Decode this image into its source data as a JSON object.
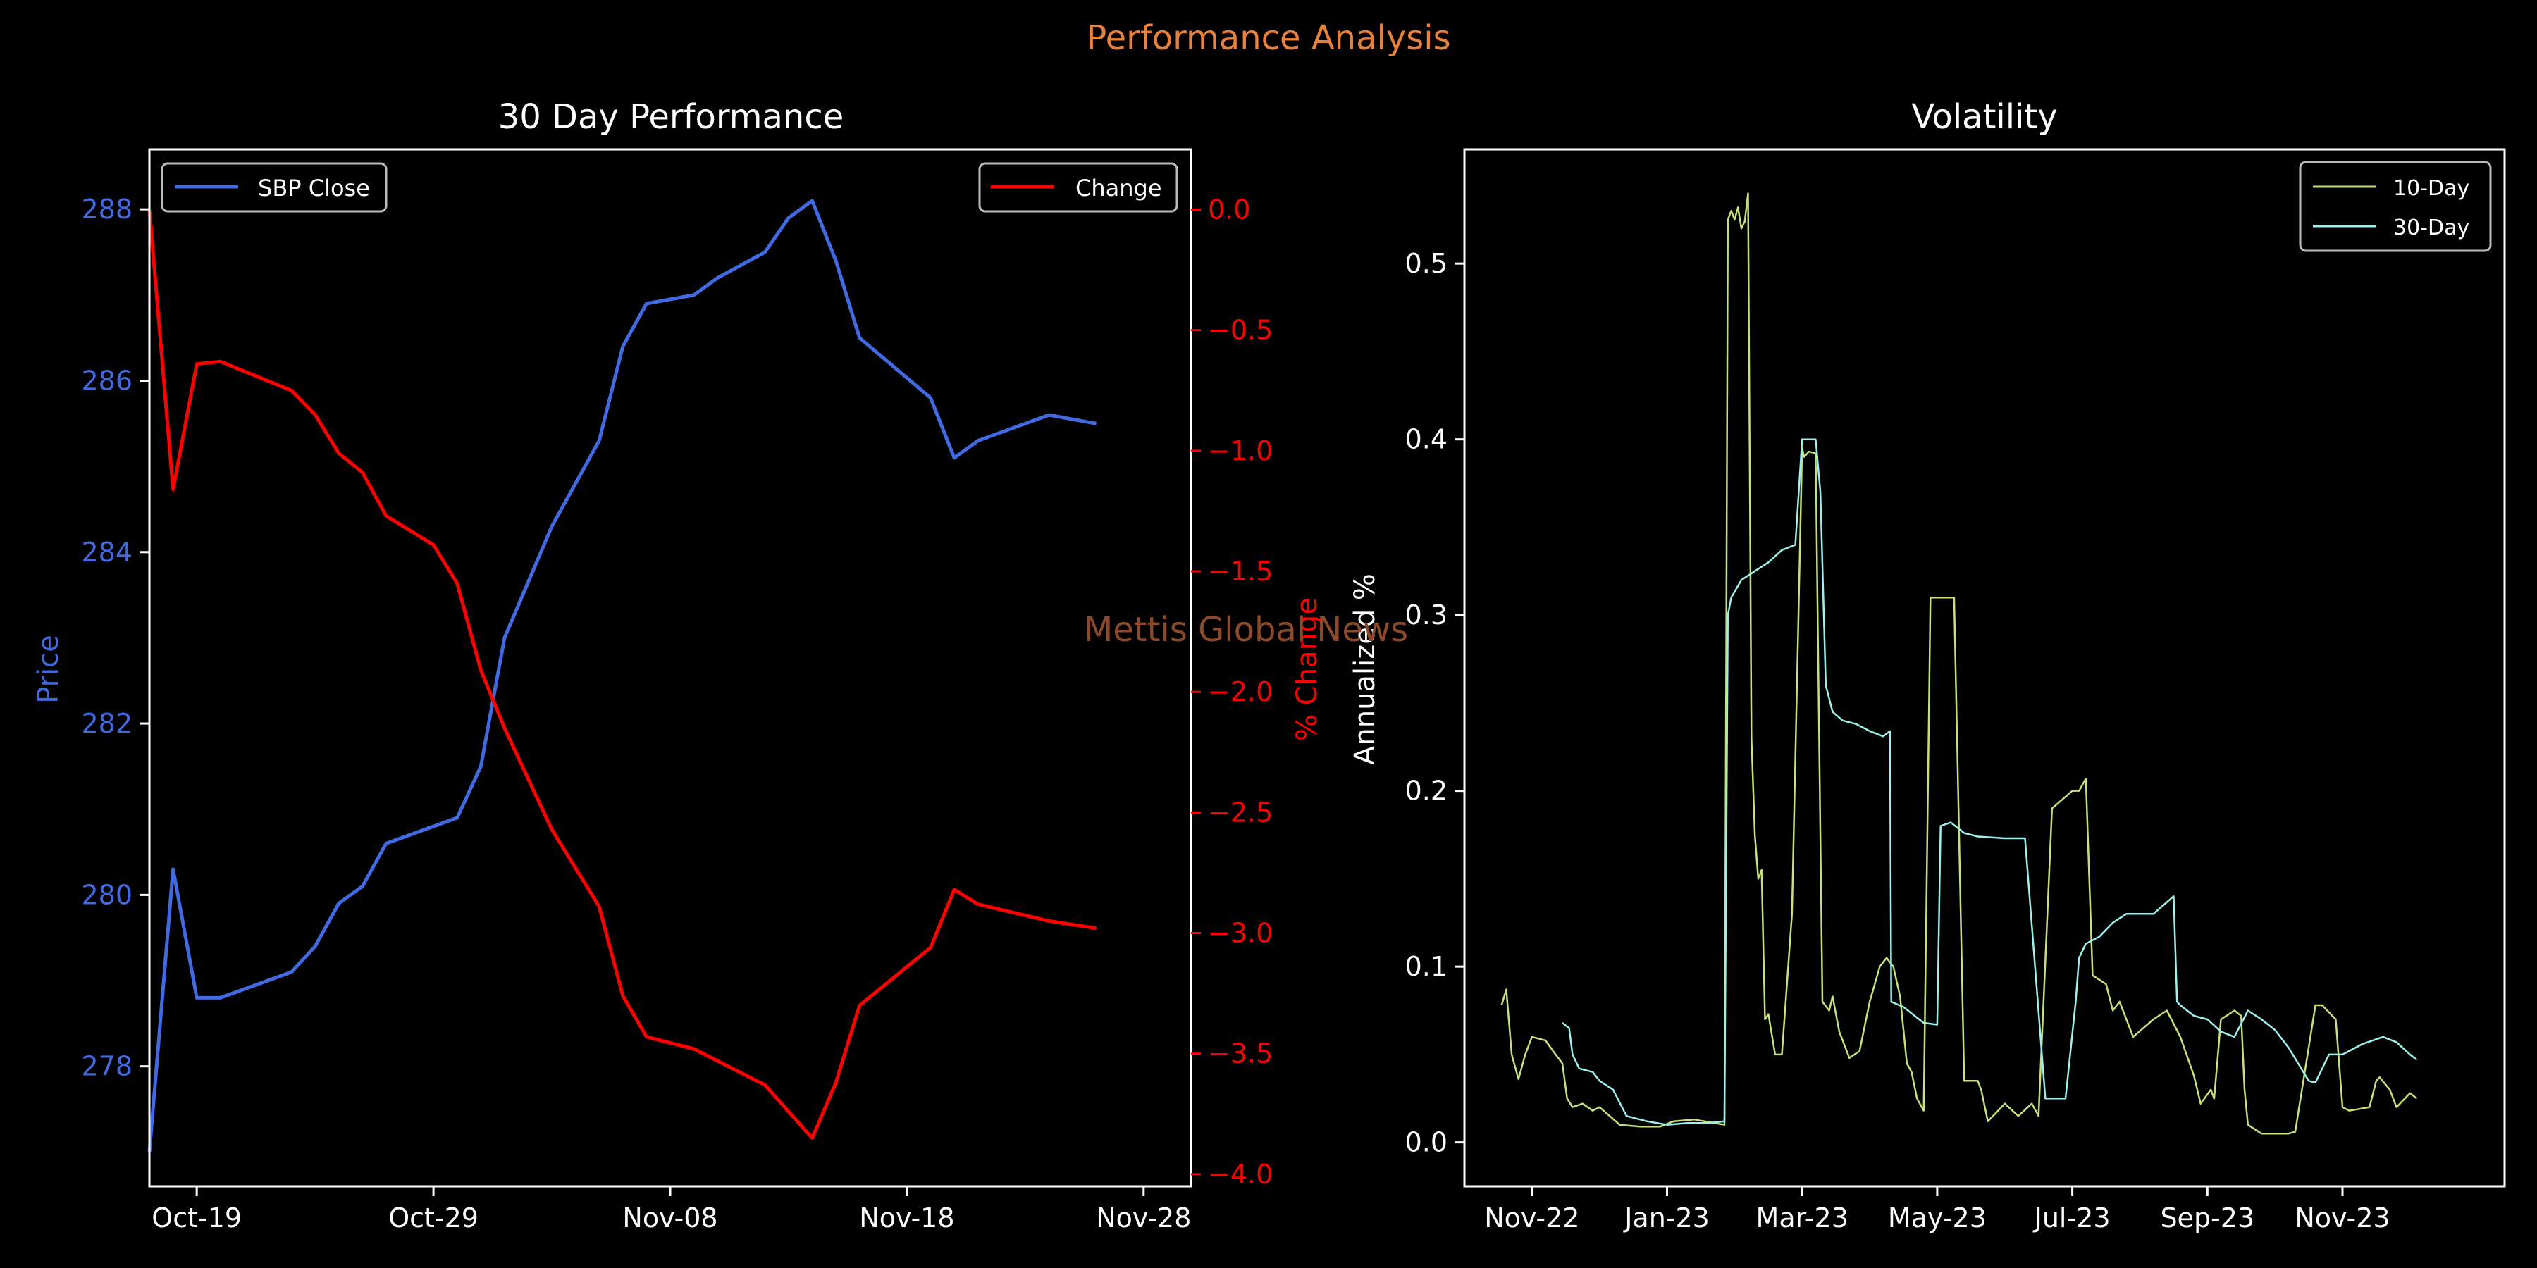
{
  "figure": {
    "suptitle": "Performance Analysis",
    "watermark": "Mettis Global News",
    "colors": {
      "background": "#000000",
      "suptitle": "#E8823A",
      "watermark": "#8B4A2A",
      "text": "#FFFFFF",
      "price": "#4169E1",
      "change": "#FF0000",
      "vol10": "#C6E07A",
      "vol30": "#9EF0EC"
    }
  },
  "chart_data": [
    {
      "type": "line",
      "title": "30 Day Performance",
      "xlabel": "",
      "ylabel": "Price",
      "ylabel_right": "% Change",
      "x_ticks": [
        "Oct-19",
        "Oct-29",
        "Nov-08",
        "Nov-18",
        "Nov-28"
      ],
      "x_tick_days": [
        0,
        10,
        20,
        30,
        40
      ],
      "xlim": [
        -2,
        42
      ],
      "ylim": [
        276.6,
        288.7
      ],
      "y_ticks": [
        278,
        280,
        282,
        284,
        286,
        288
      ],
      "ylim_right": [
        -4.05,
        0.25
      ],
      "y_ticks_right": [
        0.0,
        -0.5,
        -1.0,
        -1.5,
        -2.0,
        -2.5,
        -3.0,
        -3.5,
        -4.0
      ],
      "y_tick_labels_right": [
        "0.0",
        "−0.5",
        "−1.0",
        "−1.5",
        "−2.0",
        "−2.5",
        "−3.0",
        "−3.5",
        "−4.0"
      ],
      "legend_left_position": "upper left",
      "legend_right_position": "upper right",
      "series": [
        {
          "name": "SBP Close",
          "axis": "left",
          "x": [
            -2,
            -1,
            0,
            1,
            4,
            5,
            6,
            7,
            8,
            10,
            11,
            12,
            13,
            15,
            17,
            18,
            19,
            21,
            22,
            24,
            25,
            26,
            27,
            28,
            31,
            32,
            33,
            36,
            38
          ],
          "y": [
            277.0,
            280.3,
            278.8,
            278.8,
            279.1,
            279.4,
            279.9,
            280.1,
            280.6,
            280.8,
            280.9,
            281.5,
            283.0,
            284.3,
            285.3,
            286.4,
            286.9,
            287.0,
            287.2,
            287.5,
            287.9,
            288.1,
            287.4,
            286.5,
            285.8,
            285.1,
            285.3,
            285.6,
            285.5
          ]
        },
        {
          "name": "Change",
          "axis": "right",
          "x": [
            -2,
            -1,
            0,
            1,
            4,
            5,
            6,
            7,
            8,
            10,
            11,
            12,
            13,
            15,
            17,
            18,
            19,
            21,
            22,
            24,
            25,
            26,
            27,
            28,
            31,
            32,
            33,
            36,
            38
          ],
          "y": [
            0.0,
            -1.16,
            -0.64,
            -0.63,
            -0.75,
            -0.85,
            -1.01,
            -1.09,
            -1.27,
            -1.39,
            -1.55,
            -1.91,
            -2.15,
            -2.57,
            -2.89,
            -3.26,
            -3.43,
            -3.48,
            -3.53,
            -3.63,
            -3.74,
            -3.85,
            -3.62,
            -3.3,
            -3.06,
            -2.82,
            -2.88,
            -2.95,
            -2.98
          ]
        }
      ]
    },
    {
      "type": "line",
      "title": "Volatility",
      "xlabel": "",
      "ylabel": "Annualized %",
      "x_ticks": [
        "Nov-22",
        "Jan-23",
        "Mar-23",
        "May-23",
        "Jul-23",
        "Sep-23",
        "Nov-23"
      ],
      "x_tick_months": [
        0,
        2,
        4,
        6,
        8,
        10,
        12
      ],
      "xlim": [
        -1.0,
        14.4
      ],
      "ylim": [
        -0.025,
        0.565
      ],
      "y_ticks": [
        0.0,
        0.1,
        0.2,
        0.3,
        0.4,
        0.5
      ],
      "y_tick_labels": [
        "0.0",
        "0.1",
        "0.2",
        "0.3",
        "0.4",
        "0.5"
      ],
      "legend_position": "upper right",
      "series": [
        {
          "name": "10-Day",
          "x": [
            -0.45,
            -0.38,
            -0.3,
            -0.2,
            -0.1,
            0.0,
            0.2,
            0.35,
            0.45,
            0.52,
            0.6,
            0.75,
            0.9,
            1.0,
            1.3,
            1.6,
            1.9,
            2.1,
            2.4,
            2.7,
            2.85,
            2.9,
            2.95,
            3.0,
            3.05,
            3.1,
            3.15,
            3.2,
            3.25,
            3.3,
            3.35,
            3.4,
            3.45,
            3.5,
            3.6,
            3.7,
            3.85,
            4.0,
            4.03,
            4.1,
            4.2,
            4.3,
            4.4,
            4.45,
            4.55,
            4.7,
            4.85,
            5.0,
            5.15,
            5.25,
            5.35,
            5.45,
            5.55,
            5.62,
            5.7,
            5.8,
            5.9,
            6.0,
            6.05,
            6.25,
            6.4,
            6.6,
            6.65,
            6.75,
            7.0,
            7.2,
            7.4,
            7.5,
            7.7,
            8.0,
            8.1,
            8.2,
            8.3,
            8.5,
            8.6,
            8.7,
            8.8,
            8.9,
            9.2,
            9.4,
            9.6,
            9.8,
            9.9,
            10.05,
            10.1,
            10.2,
            10.4,
            10.5,
            10.55,
            10.6,
            10.8,
            11.0,
            11.2,
            11.3,
            11.6,
            11.7,
            11.9,
            12.0,
            12.1,
            12.4,
            12.5,
            12.55,
            12.7,
            12.8,
            13.0,
            13.1
          ],
          "y": [
            0.078,
            0.087,
            0.05,
            0.036,
            0.05,
            0.06,
            0.058,
            0.05,
            0.045,
            0.025,
            0.02,
            0.022,
            0.018,
            0.02,
            0.01,
            0.009,
            0.009,
            0.012,
            0.013,
            0.011,
            0.01,
            0.525,
            0.53,
            0.525,
            0.532,
            0.52,
            0.524,
            0.54,
            0.23,
            0.175,
            0.15,
            0.155,
            0.07,
            0.073,
            0.05,
            0.05,
            0.13,
            0.395,
            0.39,
            0.393,
            0.392,
            0.08,
            0.075,
            0.083,
            0.063,
            0.048,
            0.052,
            0.08,
            0.1,
            0.105,
            0.1,
            0.083,
            0.045,
            0.04,
            0.025,
            0.018,
            0.31,
            0.31,
            0.31,
            0.31,
            0.035,
            0.035,
            0.03,
            0.012,
            0.022,
            0.015,
            0.022,
            0.015,
            0.19,
            0.2,
            0.2,
            0.207,
            0.095,
            0.09,
            0.075,
            0.08,
            0.07,
            0.06,
            0.07,
            0.075,
            0.06,
            0.038,
            0.022,
            0.03,
            0.025,
            0.07,
            0.075,
            0.072,
            0.03,
            0.01,
            0.005,
            0.005,
            0.005,
            0.006,
            0.078,
            0.078,
            0.07,
            0.02,
            0.018,
            0.02,
            0.035,
            0.037,
            0.03,
            0.02,
            0.028,
            0.025
          ]
        },
        {
          "name": "30-Day",
          "x": [
            0.45,
            0.55,
            0.6,
            0.7,
            0.8,
            0.9,
            1.0,
            1.2,
            1.4,
            1.7,
            2.0,
            2.3,
            2.6,
            2.85,
            2.9,
            2.95,
            3.1,
            3.3,
            3.5,
            3.7,
            3.9,
            4.0,
            4.2,
            4.27,
            4.35,
            4.45,
            4.6,
            4.8,
            5.0,
            5.2,
            5.3,
            5.32,
            5.5,
            5.8,
            6.0,
            6.05,
            6.2,
            6.4,
            6.6,
            7.0,
            7.3,
            7.6,
            7.9,
            8.05,
            8.1,
            8.2,
            8.4,
            8.6,
            8.8,
            9.0,
            9.2,
            9.5,
            9.55,
            9.6,
            9.8,
            10.0,
            10.2,
            10.4,
            10.6,
            10.8,
            11.0,
            11.2,
            11.5,
            11.6,
            11.8,
            12.0,
            12.3,
            12.6,
            12.8,
            13.0,
            13.1
          ],
          "y": [
            0.068,
            0.065,
            0.05,
            0.042,
            0.041,
            0.04,
            0.035,
            0.03,
            0.015,
            0.012,
            0.01,
            0.011,
            0.011,
            0.012,
            0.3,
            0.31,
            0.32,
            0.325,
            0.33,
            0.337,
            0.34,
            0.4,
            0.4,
            0.37,
            0.26,
            0.245,
            0.24,
            0.238,
            0.234,
            0.231,
            0.234,
            0.08,
            0.077,
            0.068,
            0.067,
            0.18,
            0.182,
            0.176,
            0.174,
            0.173,
            0.173,
            0.025,
            0.025,
            0.08,
            0.105,
            0.113,
            0.117,
            0.125,
            0.13,
            0.13,
            0.13,
            0.14,
            0.08,
            0.078,
            0.072,
            0.07,
            0.063,
            0.06,
            0.075,
            0.07,
            0.064,
            0.054,
            0.035,
            0.034,
            0.05,
            0.05,
            0.056,
            0.06,
            0.057,
            0.05,
            0.047
          ]
        }
      ]
    }
  ]
}
